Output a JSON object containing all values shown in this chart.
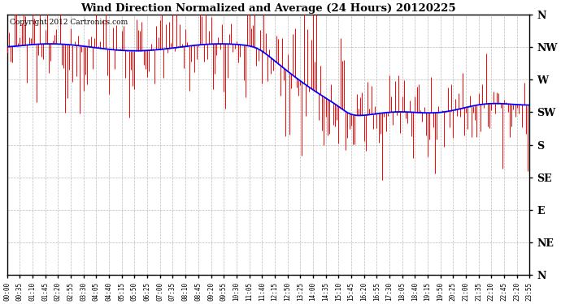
{
  "title": "Wind Direction Normalized and Average (24 Hours) 20120225",
  "copyright_text": "Copyright 2012 Cartronics.com",
  "background_color": "#ffffff",
  "plot_bg_color": "#ffffff",
  "grid_color": "#aaaaaa",
  "red_color": "#ff0000",
  "blue_color": "#0000ff",
  "ytick_labels": [
    "N",
    "NW",
    "W",
    "SW",
    "S",
    "SE",
    "E",
    "NE",
    "N"
  ],
  "ytick_values": [
    360,
    315,
    270,
    225,
    180,
    135,
    90,
    45,
    0
  ],
  "ylim": [
    0,
    360
  ],
  "xtick_labels": [
    "00:00",
    "00:35",
    "01:10",
    "01:45",
    "02:20",
    "02:55",
    "03:30",
    "04:05",
    "04:40",
    "05:15",
    "05:50",
    "06:25",
    "07:00",
    "07:35",
    "08:10",
    "08:45",
    "09:20",
    "09:55",
    "10:30",
    "11:05",
    "11:40",
    "12:15",
    "12:50",
    "13:25",
    "14:00",
    "14:35",
    "15:10",
    "15:45",
    "16:20",
    "16:55",
    "17:30",
    "18:05",
    "18:40",
    "19:15",
    "19:50",
    "20:25",
    "21:00",
    "21:35",
    "22:10",
    "22:45",
    "23:20",
    "23:55"
  ]
}
